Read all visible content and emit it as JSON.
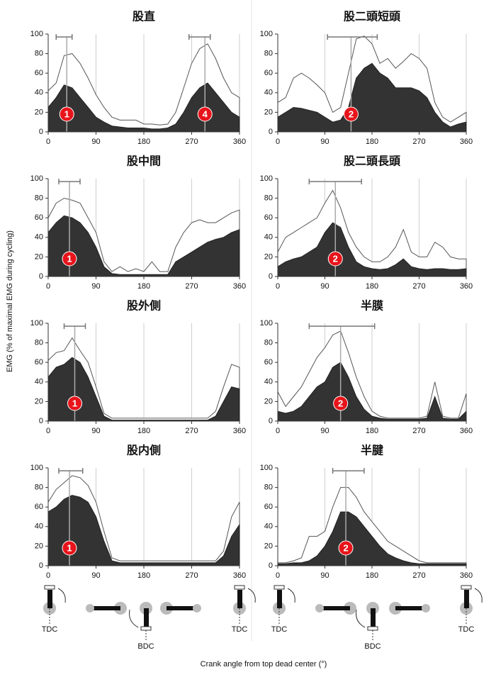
{
  "y_label": "EMG (% of maximal EMG during cycling)",
  "x_label": "Crank angle from top dead center (°)",
  "crank_labels": [
    "TDC",
    "BDC",
    "TDC",
    "TDC",
    "BDC",
    "TDC"
  ],
  "chart_data": [
    {
      "type": "area",
      "title": "股直",
      "grid": "x",
      "x": [
        0,
        15,
        30,
        45,
        60,
        75,
        90,
        105,
        120,
        135,
        150,
        165,
        180,
        195,
        210,
        225,
        240,
        255,
        270,
        285,
        300,
        315,
        330,
        345,
        360
      ],
      "series": [
        {
          "color": "#ffffff",
          "values": [
            42,
            50,
            78,
            80,
            70,
            55,
            38,
            25,
            15,
            12,
            12,
            12,
            8,
            8,
            7,
            8,
            20,
            45,
            70,
            85,
            90,
            75,
            55,
            40,
            35
          ]
        },
        {
          "color": "#333333",
          "values": [
            25,
            35,
            48,
            45,
            35,
            25,
            15,
            10,
            6,
            5,
            4,
            4,
            4,
            3,
            3,
            4,
            8,
            20,
            35,
            45,
            50,
            40,
            30,
            20,
            15
          ]
        }
      ],
      "markers": [
        {
          "x": 35,
          "label": "1",
          "range": [
            15,
            45
          ]
        },
        {
          "x": 295,
          "label": "4",
          "range": [
            265,
            305
          ]
        }
      ],
      "range_y": 97,
      "xlim": [
        0,
        360
      ],
      "ylim": [
        0,
        100
      ],
      "xticks": [
        0,
        90,
        180,
        270,
        360
      ],
      "yticks": [
        0,
        20,
        40,
        60,
        80,
        100
      ]
    },
    {
      "type": "area",
      "title": "股二頭短頭",
      "grid": "x",
      "x": [
        0,
        15,
        30,
        45,
        60,
        75,
        90,
        105,
        120,
        135,
        150,
        165,
        180,
        195,
        210,
        225,
        240,
        255,
        270,
        285,
        300,
        315,
        330,
        345,
        360
      ],
      "series": [
        {
          "color": "#ffffff",
          "values": [
            30,
            35,
            55,
            60,
            55,
            48,
            40,
            20,
            25,
            60,
            95,
            98,
            90,
            70,
            75,
            65,
            72,
            80,
            75,
            65,
            30,
            15,
            10,
            15,
            20
          ]
        },
        {
          "color": "#333333",
          "values": [
            15,
            20,
            25,
            24,
            22,
            20,
            15,
            10,
            12,
            25,
            55,
            65,
            70,
            60,
            55,
            45,
            45,
            45,
            42,
            35,
            20,
            10,
            5,
            8,
            10
          ]
        }
      ],
      "markers": [
        {
          "x": 140,
          "label": "2",
          "range": [
            95,
            190
          ]
        }
      ],
      "range_y": 97,
      "xlim": [
        0,
        360
      ],
      "ylim": [
        0,
        100
      ],
      "xticks": [
        0,
        90,
        180,
        270,
        360
      ],
      "yticks": [
        0,
        20,
        40,
        60,
        80,
        100
      ]
    },
    {
      "type": "area",
      "title": "股中間",
      "grid": "x",
      "x": [
        0,
        15,
        30,
        45,
        60,
        75,
        90,
        105,
        120,
        135,
        150,
        165,
        180,
        195,
        210,
        225,
        240,
        255,
        270,
        285,
        300,
        315,
        330,
        345,
        360
      ],
      "series": [
        {
          "color": "#ffffff",
          "values": [
            60,
            75,
            80,
            78,
            75,
            60,
            45,
            15,
            5,
            10,
            5,
            8,
            5,
            15,
            5,
            5,
            30,
            45,
            55,
            58,
            55,
            55,
            60,
            65,
            68
          ]
        },
        {
          "color": "#333333",
          "values": [
            45,
            55,
            62,
            60,
            55,
            45,
            30,
            10,
            3,
            2,
            2,
            2,
            2,
            2,
            2,
            2,
            15,
            20,
            25,
            30,
            35,
            38,
            40,
            45,
            48
          ]
        }
      ],
      "markers": [
        {
          "x": 40,
          "label": "1",
          "range": [
            20,
            60
          ]
        }
      ],
      "range_y": 97,
      "xlim": [
        0,
        360
      ],
      "ylim": [
        0,
        100
      ],
      "xticks": [
        0,
        90,
        180,
        270,
        360
      ],
      "yticks": [
        0,
        20,
        40,
        60,
        80,
        100
      ]
    },
    {
      "type": "area",
      "title": "股二頭長頭",
      "grid": "x",
      "x": [
        0,
        15,
        30,
        45,
        60,
        75,
        90,
        105,
        120,
        135,
        150,
        165,
        180,
        195,
        210,
        225,
        240,
        255,
        270,
        285,
        300,
        315,
        330,
        345,
        360
      ],
      "series": [
        {
          "color": "#ffffff",
          "values": [
            25,
            40,
            45,
            50,
            55,
            60,
            75,
            88,
            70,
            45,
            30,
            20,
            15,
            15,
            20,
            30,
            48,
            25,
            20,
            20,
            35,
            30,
            20,
            18,
            18
          ]
        },
        {
          "color": "#333333",
          "values": [
            10,
            15,
            18,
            20,
            25,
            30,
            45,
            55,
            50,
            30,
            15,
            10,
            8,
            7,
            8,
            12,
            18,
            10,
            8,
            7,
            8,
            8,
            7,
            7,
            8
          ]
        }
      ],
      "markers": [
        {
          "x": 110,
          "label": "2",
          "range": [
            60,
            160
          ]
        }
      ],
      "range_y": 97,
      "xlim": [
        0,
        360
      ],
      "ylim": [
        0,
        100
      ],
      "xticks": [
        0,
        90,
        180,
        270,
        360
      ],
      "yticks": [
        0,
        20,
        40,
        60,
        80,
        100
      ]
    },
    {
      "type": "area",
      "title": "股外側",
      "grid": "x",
      "x": [
        0,
        15,
        30,
        45,
        60,
        75,
        90,
        105,
        120,
        135,
        150,
        165,
        180,
        195,
        210,
        225,
        240,
        255,
        270,
        285,
        300,
        315,
        330,
        345,
        360
      ],
      "series": [
        {
          "color": "#ffffff",
          "values": [
            62,
            70,
            72,
            85,
            72,
            60,
            35,
            8,
            3,
            3,
            3,
            3,
            3,
            3,
            3,
            3,
            3,
            3,
            3,
            3,
            3,
            10,
            35,
            58,
            55
          ]
        },
        {
          "color": "#333333",
          "values": [
            45,
            55,
            58,
            65,
            60,
            45,
            25,
            5,
            1,
            1,
            1,
            1,
            1,
            1,
            1,
            1,
            1,
            1,
            1,
            1,
            1,
            5,
            20,
            35,
            33
          ]
        }
      ],
      "markers": [
        {
          "x": 50,
          "label": "1",
          "range": [
            30,
            70
          ]
        }
      ],
      "range_y": 97,
      "xlim": [
        0,
        360
      ],
      "ylim": [
        0,
        100
      ],
      "xticks": [
        0,
        90,
        180,
        270,
        360
      ],
      "yticks": [
        0,
        20,
        40,
        60,
        80,
        100
      ]
    },
    {
      "type": "area",
      "title": "半膜",
      "grid": "x",
      "x": [
        0,
        15,
        30,
        45,
        60,
        75,
        90,
        105,
        120,
        135,
        150,
        165,
        180,
        195,
        210,
        225,
        240,
        255,
        270,
        285,
        300,
        315,
        330,
        345,
        360
      ],
      "series": [
        {
          "color": "#ffffff",
          "values": [
            30,
            15,
            25,
            35,
            50,
            65,
            75,
            88,
            92,
            70,
            45,
            25,
            10,
            5,
            3,
            3,
            3,
            3,
            3,
            5,
            40,
            5,
            3,
            3,
            28
          ]
        },
        {
          "color": "#333333",
          "values": [
            10,
            8,
            10,
            15,
            25,
            35,
            40,
            55,
            60,
            45,
            25,
            12,
            5,
            3,
            2,
            2,
            2,
            2,
            2,
            3,
            25,
            3,
            2,
            2,
            10
          ]
        }
      ],
      "markers": [
        {
          "x": 120,
          "label": "2",
          "range": [
            60,
            185
          ]
        }
      ],
      "range_y": 97,
      "xlim": [
        0,
        360
      ],
      "ylim": [
        0,
        100
      ],
      "xticks": [
        0,
        90,
        180,
        270,
        360
      ],
      "yticks": [
        0,
        20,
        40,
        60,
        80,
        100
      ]
    },
    {
      "type": "area",
      "title": "股内側",
      "grid": "x",
      "x": [
        0,
        15,
        30,
        45,
        60,
        75,
        90,
        105,
        120,
        135,
        150,
        165,
        180,
        195,
        210,
        225,
        240,
        255,
        270,
        285,
        300,
        315,
        330,
        345,
        360
      ],
      "series": [
        {
          "color": "#ffffff",
          "values": [
            65,
            78,
            85,
            92,
            90,
            82,
            65,
            35,
            8,
            5,
            5,
            5,
            5,
            5,
            5,
            5,
            5,
            5,
            5,
            5,
            5,
            5,
            15,
            50,
            65
          ]
        },
        {
          "color": "#333333",
          "values": [
            55,
            60,
            68,
            72,
            70,
            65,
            50,
            25,
            5,
            3,
            3,
            3,
            3,
            3,
            3,
            3,
            3,
            3,
            3,
            3,
            3,
            3,
            10,
            30,
            42
          ]
        }
      ],
      "markers": [
        {
          "x": 40,
          "label": "1",
          "range": [
            20,
            65
          ]
        }
      ],
      "range_y": 97,
      "xlim": [
        0,
        360
      ],
      "ylim": [
        0,
        100
      ],
      "xticks": [
        0,
        90,
        180,
        270,
        360
      ],
      "yticks": [
        0,
        20,
        40,
        60,
        80,
        100
      ]
    },
    {
      "type": "area",
      "title": "半腱",
      "grid": "x",
      "x": [
        0,
        15,
        30,
        45,
        60,
        75,
        90,
        105,
        120,
        135,
        150,
        165,
        180,
        195,
        210,
        225,
        240,
        255,
        270,
        285,
        300,
        315,
        330,
        345,
        360
      ],
      "series": [
        {
          "color": "#ffffff",
          "values": [
            3,
            3,
            5,
            8,
            30,
            30,
            35,
            60,
            80,
            80,
            70,
            55,
            45,
            35,
            25,
            20,
            15,
            10,
            5,
            3,
            3,
            3,
            3,
            3,
            3
          ]
        },
        {
          "color": "#333333",
          "values": [
            2,
            2,
            3,
            3,
            5,
            10,
            20,
            35,
            55,
            55,
            50,
            40,
            30,
            20,
            12,
            8,
            5,
            3,
            2,
            2,
            2,
            2,
            2,
            2,
            2
          ]
        }
      ],
      "markers": [
        {
          "x": 130,
          "label": "2",
          "range": [
            105,
            165
          ]
        }
      ],
      "range_y": 97,
      "xlim": [
        0,
        360
      ],
      "ylim": [
        0,
        100
      ],
      "xticks": [
        0,
        90,
        180,
        270,
        360
      ],
      "yticks": [
        0,
        20,
        40,
        60,
        80,
        100
      ]
    }
  ]
}
